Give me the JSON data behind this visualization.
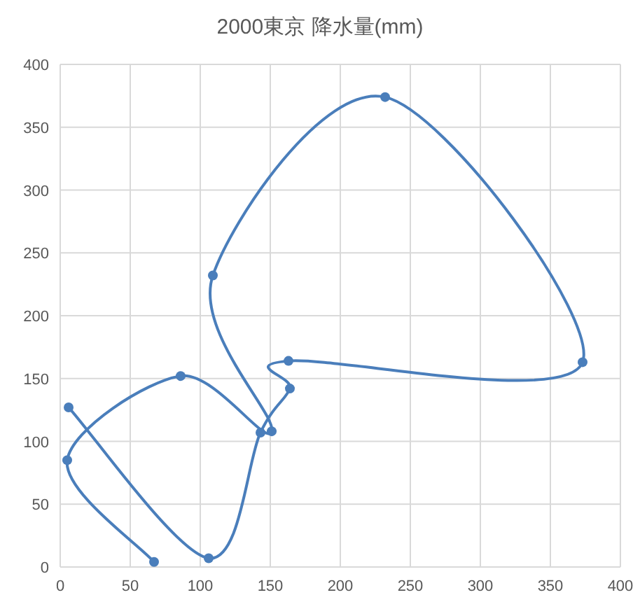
{
  "chart_data": {
    "type": "line",
    "title": "2000東京 降水量(mm)",
    "x": [
      67,
      5,
      86,
      151,
      109,
      232,
      373,
      163,
      164,
      143,
      106,
      6
    ],
    "series": [
      {
        "color": "#4a7ebb",
        "values": [
          4,
          85,
          152,
          108,
          232,
          374,
          163,
          164,
          142,
          107,
          7,
          127
        ]
      }
    ],
    "xlim": [
      0,
      400
    ],
    "xticks": [
      0,
      50,
      100,
      150,
      200,
      250,
      300,
      350,
      400
    ],
    "ylim": [
      0,
      400
    ],
    "yticks": [
      0,
      50,
      100,
      150,
      200,
      250,
      300,
      350,
      400
    ],
    "grid": true,
    "marker": "circle",
    "line_style": "solid"
  }
}
